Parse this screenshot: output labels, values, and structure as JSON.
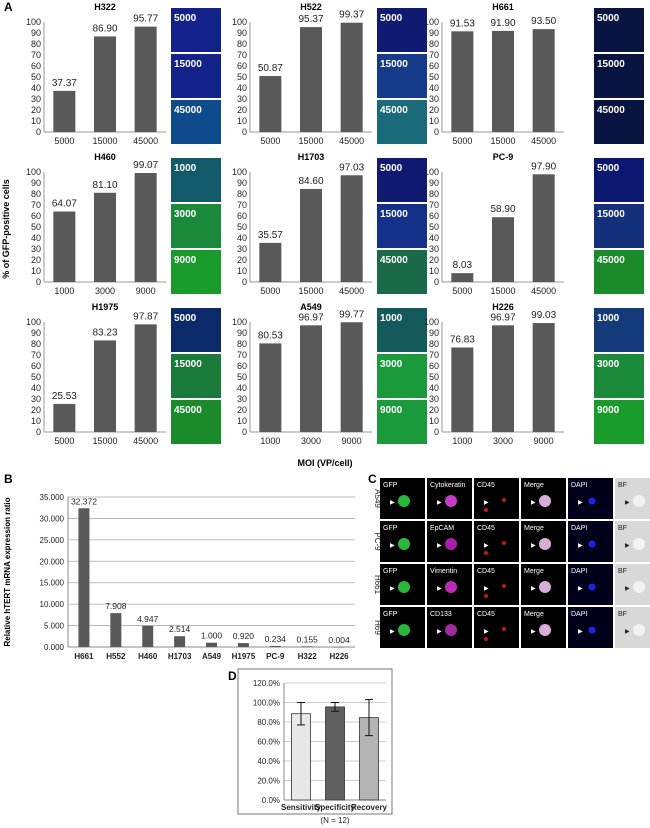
{
  "panel_labels": {
    "a": "A",
    "b": "B",
    "c": "C",
    "d": "D"
  },
  "panel_a_ylabel": "% of GFP-positive cells",
  "panel_a_xlabel": "MOI (VP/cell)",
  "chart_data": [
    {
      "type": "bar",
      "title": "H322",
      "categories": [
        "5000",
        "15000",
        "45000"
      ],
      "values": [
        37.37,
        86.9,
        95.77
      ],
      "labels": [
        "37.37",
        "86.90",
        "95.77"
      ],
      "ylim": [
        0,
        100
      ],
      "ytick_step": 10,
      "micro_labels": [
        "5000",
        "15000",
        "45000"
      ],
      "micro_colors": [
        "#12228a",
        "#12228a",
        "#0f4a8a"
      ]
    },
    {
      "type": "bar",
      "title": "H522",
      "categories": [
        "5000",
        "15000",
        "45000"
      ],
      "values": [
        50.87,
        95.37,
        99.37
      ],
      "labels": [
        "50.87",
        "95.37",
        "99.37"
      ],
      "ylim": [
        0,
        100
      ],
      "ytick_step": 10,
      "micro_labels": [
        "5000",
        "15000",
        "45000"
      ],
      "micro_colors": [
        "#101a70",
        "#163a8a",
        "#1a6a7a"
      ]
    },
    {
      "type": "bar",
      "title": "H661",
      "categories": [
        "5000",
        "15000",
        "45000"
      ],
      "values": [
        91.53,
        91.9,
        93.5
      ],
      "labels": [
        "91.53",
        "91.90",
        "93.50"
      ],
      "ylim": [
        0,
        100
      ],
      "ytick_step": 10,
      "micro_labels": [
        "5000",
        "15000",
        "45000"
      ],
      "micro_colors": [
        "#0a1440",
        "#0a1440",
        "#0a1440"
      ]
    },
    {
      "type": "bar",
      "title": "H460",
      "categories": [
        "1000",
        "3000",
        "9000"
      ],
      "values": [
        64.07,
        81.1,
        99.07
      ],
      "labels": [
        "64.07",
        "81.10",
        "99.07"
      ],
      "ylim": [
        0,
        100
      ],
      "ytick_step": 10,
      "micro_labels": [
        "1000",
        "3000",
        "9000"
      ],
      "micro_colors": [
        "#125a6a",
        "#1a8a3a",
        "#1a9a2a"
      ]
    },
    {
      "type": "bar",
      "title": "H1703",
      "categories": [
        "5000",
        "15000",
        "45000"
      ],
      "values": [
        35.57,
        84.6,
        97.03
      ],
      "labels": [
        "35.57",
        "84.60",
        "97.03"
      ],
      "ylim": [
        0,
        100
      ],
      "ytick_step": 10,
      "micro_labels": [
        "5000",
        "15000",
        "45000"
      ],
      "micro_colors": [
        "#101a70",
        "#153088",
        "#1a6a4a"
      ]
    },
    {
      "type": "bar",
      "title": "PC-9",
      "categories": [
        "5000",
        "15000",
        "45000"
      ],
      "values": [
        8.03,
        58.9,
        97.9
      ],
      "labels": [
        "8.03",
        "58.90",
        "97.90"
      ],
      "ylim": [
        0,
        100
      ],
      "ytick_step": 10,
      "micro_labels": [
        "5000",
        "15000",
        "45000"
      ],
      "micro_colors": [
        "#0c1870",
        "#14307a",
        "#1a8a2a"
      ]
    },
    {
      "type": "bar",
      "title": "H1975",
      "categories": [
        "5000",
        "15000",
        "45000"
      ],
      "values": [
        25.53,
        83.23,
        97.87
      ],
      "labels": [
        "25.53",
        "83.23",
        "97.87"
      ],
      "ylim": [
        0,
        100
      ],
      "ytick_step": 10,
      "micro_labels": [
        "5000",
        "15000",
        "45000"
      ],
      "micro_colors": [
        "#0c2a6a",
        "#1a7a3a",
        "#1a8a2a"
      ]
    },
    {
      "type": "bar",
      "title": "A549",
      "categories": [
        "1000",
        "3000",
        "9000"
      ],
      "values": [
        80.53,
        96.97,
        99.77
      ],
      "labels": [
        "80.53",
        "96.97",
        "99.77"
      ],
      "ylim": [
        0,
        100
      ],
      "ytick_step": 10,
      "micro_labels": [
        "1000",
        "3000",
        "9000"
      ],
      "micro_colors": [
        "#145a5a",
        "#1a9a3a",
        "#1a9a3a"
      ]
    },
    {
      "type": "bar",
      "title": "H226",
      "categories": [
        "1000",
        "3000",
        "9000"
      ],
      "values": [
        76.83,
        96.97,
        99.03
      ],
      "labels": [
        "76.83",
        "96.97",
        "99.03"
      ],
      "ylim": [
        0,
        100
      ],
      "ytick_step": 10,
      "micro_labels": [
        "1000",
        "3000",
        "9000"
      ],
      "micro_colors": [
        "#143a7a",
        "#1a8a3a",
        "#1a9a2a"
      ]
    },
    {
      "type": "bar",
      "title": "",
      "ylabel": "Relative hTERT mRNA expression ratio",
      "categories": [
        "H661",
        "H552",
        "H460",
        "H1703",
        "A549",
        "H1975",
        "PC-9",
        "H322",
        "H226"
      ],
      "values": [
        32.372,
        7.908,
        4.947,
        2.514,
        1.0,
        0.92,
        0.234,
        0.155,
        0.004
      ],
      "labels": [
        "32.372",
        "7.908",
        "4.947",
        "2.514",
        "1.000",
        "0.920",
        "0.234",
        "0.155",
        "0.004"
      ],
      "ylim": [
        0,
        35
      ],
      "yticks": [
        "0.000",
        "5.000",
        "10.000",
        "15.000",
        "20.000",
        "25.000",
        "30.000",
        "35.000"
      ]
    },
    {
      "type": "bar",
      "title": "",
      "categories": [
        "Sensitivity",
        "Specificity",
        "Recovery"
      ],
      "values": [
        88.5,
        95.5,
        84.5
      ],
      "errors": [
        11.5,
        4.5,
        18.5
      ],
      "ylim": [
        0,
        120
      ],
      "yticks": [
        "0.0%",
        "20.0%",
        "40.0%",
        "60.0%",
        "80.0%",
        "100.0%",
        "120.0%"
      ],
      "xlabel": "(N = 12)",
      "colors": [
        "#e8e8e8",
        "#606060",
        "#b4b4b4"
      ]
    }
  ],
  "panel_c": {
    "rows": [
      "A549",
      "PC-9",
      "H661",
      "H69"
    ],
    "col_labels": [
      [
        "GFP",
        "Cytokeratin",
        "CD45",
        "Merge",
        "DAPI",
        "BF"
      ],
      [
        "GFP",
        "EpCAM",
        "CD45",
        "Merge",
        "DAPI",
        "BF"
      ],
      [
        "GFP",
        "Vimentin",
        "CD45",
        "Merge",
        "DAPI",
        "BF"
      ],
      [
        "GFP",
        "CD133",
        "CD45",
        "Merge",
        "DAPI",
        "BF"
      ]
    ],
    "arrow": "▶"
  }
}
